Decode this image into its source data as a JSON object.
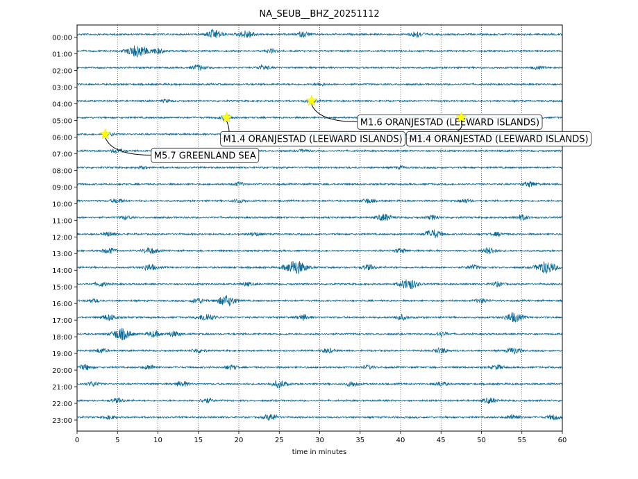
{
  "chart_data": {
    "type": "line",
    "title": "NA_SEUB__BHZ_20251112",
    "xlabel": "time in minutes",
    "ylabel": "",
    "xlim": [
      0,
      60
    ],
    "x_ticks": [
      0,
      5,
      10,
      15,
      20,
      25,
      30,
      35,
      40,
      45,
      50,
      55,
      60
    ],
    "grid": "vertical dotted lines every 5 minutes",
    "trace_color": "#0b6b9a",
    "rows": [
      {
        "label": "00:00",
        "bursts": [
          [
            17,
            1.0
          ],
          [
            21,
            0.9
          ],
          [
            28,
            0.6
          ],
          [
            42,
            0.7
          ]
        ]
      },
      {
        "label": "01:00",
        "bursts": [
          [
            7.5,
            1.4
          ],
          [
            10,
            0.6
          ],
          [
            24,
            0.4
          ]
        ]
      },
      {
        "label": "02:00",
        "bursts": [
          [
            15,
            0.6
          ],
          [
            23,
            0.5
          ],
          [
            57,
            0.3
          ]
        ]
      },
      {
        "label": "03:00",
        "bursts": [
          [
            30,
            0.3
          ]
        ]
      },
      {
        "label": "04:00",
        "bursts": [
          [
            11,
            0.3
          ],
          [
            29,
            0.5
          ]
        ]
      },
      {
        "label": "05:00",
        "bursts": [
          [
            18.5,
            0.6
          ],
          [
            47.5,
            0.4
          ]
        ]
      },
      {
        "label": "06:00",
        "bursts": [
          [
            4,
            0.4
          ],
          [
            33,
            0.4
          ]
        ]
      },
      {
        "label": "07:00",
        "bursts": [
          [
            5,
            0.5
          ],
          [
            28,
            0.3
          ]
        ]
      },
      {
        "label": "08:00",
        "bursts": [
          [
            8,
            0.3
          ],
          [
            40,
            0.3
          ]
        ]
      },
      {
        "label": "09:00",
        "bursts": [
          [
            20,
            0.4
          ],
          [
            56,
            0.6
          ]
        ]
      },
      {
        "label": "10:00",
        "bursts": [
          [
            5,
            0.5
          ],
          [
            20,
            0.4
          ],
          [
            36,
            0.5
          ],
          [
            48,
            0.4
          ]
        ]
      },
      {
        "label": "11:00",
        "bursts": [
          [
            6,
            0.4
          ],
          [
            38,
            0.8
          ],
          [
            44,
            0.5
          ],
          [
            55,
            0.6
          ]
        ]
      },
      {
        "label": "12:00",
        "bursts": [
          [
            4,
            0.5
          ],
          [
            22,
            0.4
          ],
          [
            44,
            1.0
          ],
          [
            52,
            0.4
          ]
        ]
      },
      {
        "label": "13:00",
        "bursts": [
          [
            4,
            0.6
          ],
          [
            9,
            0.7
          ],
          [
            40,
            0.5
          ],
          [
            51,
            0.7
          ]
        ]
      },
      {
        "label": "14:00",
        "bursts": [
          [
            9,
            0.7
          ],
          [
            27,
            1.6
          ],
          [
            36,
            0.6
          ],
          [
            49,
            0.5
          ],
          [
            58,
            1.4
          ]
        ]
      },
      {
        "label": "15:00",
        "bursts": [
          [
            3,
            0.5
          ],
          [
            21,
            0.4
          ],
          [
            41,
            1.2
          ],
          [
            52,
            0.5
          ]
        ]
      },
      {
        "label": "16:00",
        "bursts": [
          [
            2,
            0.4
          ],
          [
            15,
            0.6
          ],
          [
            18.5,
            1.2
          ],
          [
            50,
            0.5
          ]
        ]
      },
      {
        "label": "17:00",
        "bursts": [
          [
            4,
            0.7
          ],
          [
            16,
            0.9
          ],
          [
            28,
            0.6
          ],
          [
            40,
            0.6
          ],
          [
            54,
            1.1
          ]
        ]
      },
      {
        "label": "18:00",
        "bursts": [
          [
            5.5,
            1.3
          ],
          [
            9.5,
            0.7
          ],
          [
            12,
            0.6
          ],
          [
            45,
            0.5
          ]
        ]
      },
      {
        "label": "19:00",
        "bursts": [
          [
            3,
            0.5
          ],
          [
            15,
            0.5
          ],
          [
            31,
            0.5
          ],
          [
            45,
            0.6
          ],
          [
            54,
            0.7
          ]
        ]
      },
      {
        "label": "20:00",
        "bursts": [
          [
            1,
            0.6
          ],
          [
            9,
            0.5
          ],
          [
            19,
            0.5
          ],
          [
            36,
            0.4
          ],
          [
            52,
            0.5
          ]
        ]
      },
      {
        "label": "21:00",
        "bursts": [
          [
            2,
            0.5
          ],
          [
            13,
            0.6
          ],
          [
            25,
            0.8
          ],
          [
            34,
            0.6
          ],
          [
            45,
            0.5
          ]
        ]
      },
      {
        "label": "22:00",
        "bursts": [
          [
            5,
            0.5
          ],
          [
            16,
            0.5
          ],
          [
            51,
            0.6
          ]
        ]
      },
      {
        "label": "23:00",
        "bursts": [
          [
            4,
            0.4
          ],
          [
            24,
            0.7
          ],
          [
            54,
            0.6
          ],
          [
            59,
            0.6
          ]
        ]
      }
    ],
    "events": [
      {
        "label": "M5.7 GREENLAND SEA",
        "minute": 3.5,
        "row": "06:00"
      },
      {
        "label": "M1.4 ORANJESTAD (LEEWARD ISLANDS)",
        "minute": 18.5,
        "row": "05:00"
      },
      {
        "label": "M1.6 ORANJESTAD (LEEWARD ISLANDS)",
        "minute": 29.0,
        "row": "04:00"
      },
      {
        "label": "M1.4 ORANJESTAD (LEEWARD ISLANDS)",
        "minute": 47.5,
        "row": "05:00"
      }
    ],
    "event_marker_color": "#ffff00"
  }
}
